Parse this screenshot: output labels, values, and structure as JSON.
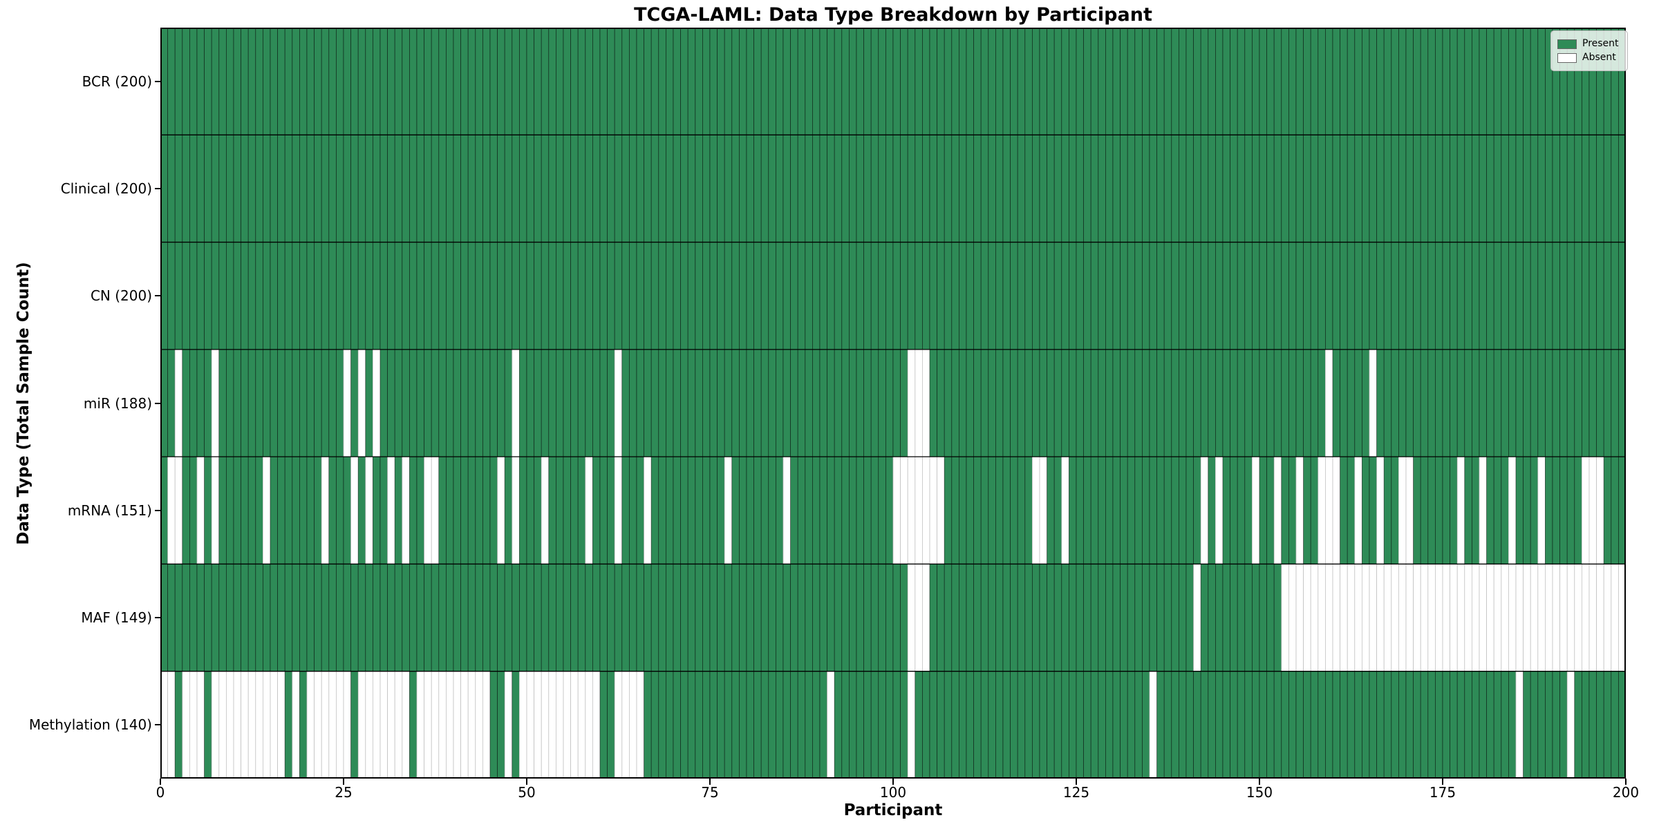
{
  "title": "TCGA-LAML: Data Type Breakdown by Participant",
  "xlabel": "Participant",
  "ylabel": "Data Type (Total Sample Count)",
  "legend": {
    "present_label": "Present",
    "absent_label": "Absent"
  },
  "colors": {
    "present": "#2e8b57",
    "absent": "#ffffff",
    "edge_present": "rgba(0,0,0,0.55)",
    "edge_absent": "#c2c2c2",
    "row_separator": "#000000",
    "plot_border": "#000000"
  },
  "chart_data": {
    "type": "heatmap",
    "x_axis": {
      "label": "Participant",
      "min": 0,
      "max": 200,
      "ticks": [
        0,
        25,
        50,
        75,
        100,
        125,
        150,
        175,
        200
      ]
    },
    "n_participants": 200,
    "legend_position": "upper right",
    "rows": [
      {
        "label": "BCR (200)",
        "total": 200,
        "absent": []
      },
      {
        "label": "Clinical (200)",
        "total": 200,
        "absent": []
      },
      {
        "label": "CN (200)",
        "total": 200,
        "absent": []
      },
      {
        "label": "miR (188)",
        "total": 188,
        "absent": [
          2,
          7,
          25,
          27,
          29,
          48,
          62,
          102,
          103,
          104,
          159,
          165
        ]
      },
      {
        "label": "mRNA (151)",
        "total": 151,
        "absent": [
          1,
          2,
          5,
          7,
          14,
          22,
          26,
          28,
          31,
          33,
          36,
          37,
          46,
          48,
          52,
          58,
          62,
          66,
          77,
          85,
          100,
          101,
          102,
          103,
          104,
          105,
          106,
          119,
          120,
          123,
          142,
          144,
          149,
          152,
          155,
          158,
          159,
          160,
          163,
          166,
          169,
          170,
          177,
          180,
          184,
          188,
          194,
          195,
          196
        ]
      },
      {
        "label": "MAF (149)",
        "total": 149,
        "absent": [
          102,
          103,
          104,
          141,
          153,
          154,
          155,
          156,
          157,
          158,
          159,
          160,
          161,
          162,
          163,
          164,
          165,
          166,
          167,
          168,
          169,
          170,
          171,
          172,
          173,
          174,
          175,
          176,
          177,
          178,
          179,
          180,
          181,
          182,
          183,
          184,
          185,
          186,
          187,
          188,
          189,
          190,
          191,
          192,
          193,
          194,
          195,
          196,
          197,
          198,
          199
        ]
      },
      {
        "label": "Methylation (140)",
        "total": 140,
        "absent": [
          0,
          1,
          3,
          4,
          5,
          7,
          8,
          9,
          10,
          11,
          12,
          13,
          14,
          15,
          16,
          18,
          20,
          21,
          22,
          23,
          24,
          25,
          27,
          28,
          29,
          30,
          31,
          32,
          33,
          35,
          36,
          37,
          38,
          39,
          40,
          41,
          42,
          43,
          44,
          47,
          49,
          50,
          51,
          52,
          53,
          54,
          55,
          56,
          57,
          58,
          59,
          62,
          63,
          64,
          65,
          91,
          102,
          135,
          185,
          192
        ]
      }
    ]
  }
}
